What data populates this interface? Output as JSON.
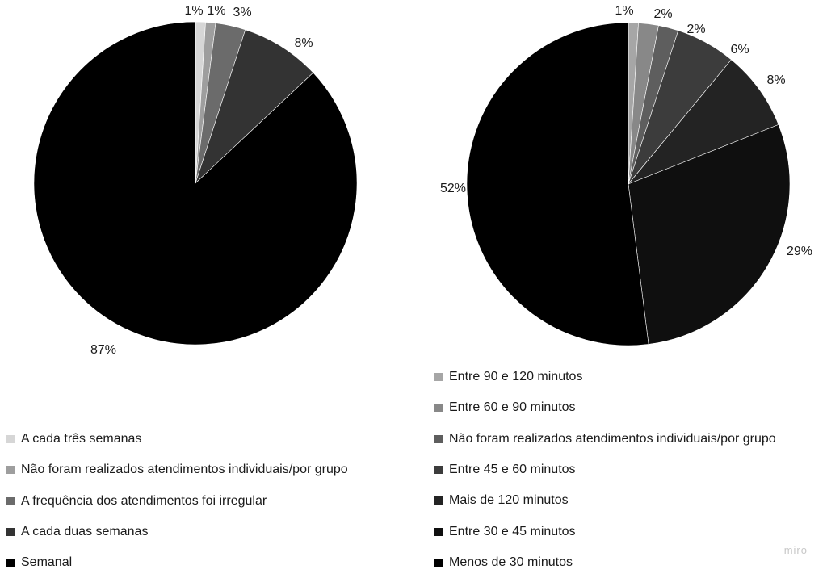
{
  "chart_data": [
    {
      "type": "pie",
      "categories": [
        "A cada três semanas",
        "Não foram realizados atendimentos individuais/por grupo",
        "A frequência dos atendimentos foi irregular",
        "A cada duas semanas",
        "Semanal"
      ],
      "values": [
        1,
        1,
        3,
        8,
        87
      ],
      "labels": [
        "1%",
        "1%",
        "3%",
        "8%",
        "87%"
      ],
      "colors": [
        "#d6d6d6",
        "#9e9e9e",
        "#6b6b6b",
        "#333333",
        "#000000"
      ],
      "legend_position": "bottom-left"
    },
    {
      "type": "pie",
      "categories": [
        "Entre 90 e 120 minutos",
        "Entre 60 e 90 minutos",
        "Não foram realizados atendimentos individuais/por grupo",
        "Entre 45 e 60 minutos",
        "Mais de 120 minutos",
        "Entre 30 e 45 minutos",
        "Menos de 30 minutos"
      ],
      "values": [
        1,
        2,
        2,
        6,
        8,
        29,
        52
      ],
      "labels": [
        "1%",
        "2%",
        "2%",
        "6%",
        "8%",
        "29%",
        "52%"
      ],
      "colors": [
        "#a6a6a6",
        "#888888",
        "#5e5e5e",
        "#3c3c3c",
        "#232323",
        "#0f0f0f",
        "#000000"
      ],
      "legend_position": "bottom-right"
    }
  ],
  "watermark": "miro"
}
